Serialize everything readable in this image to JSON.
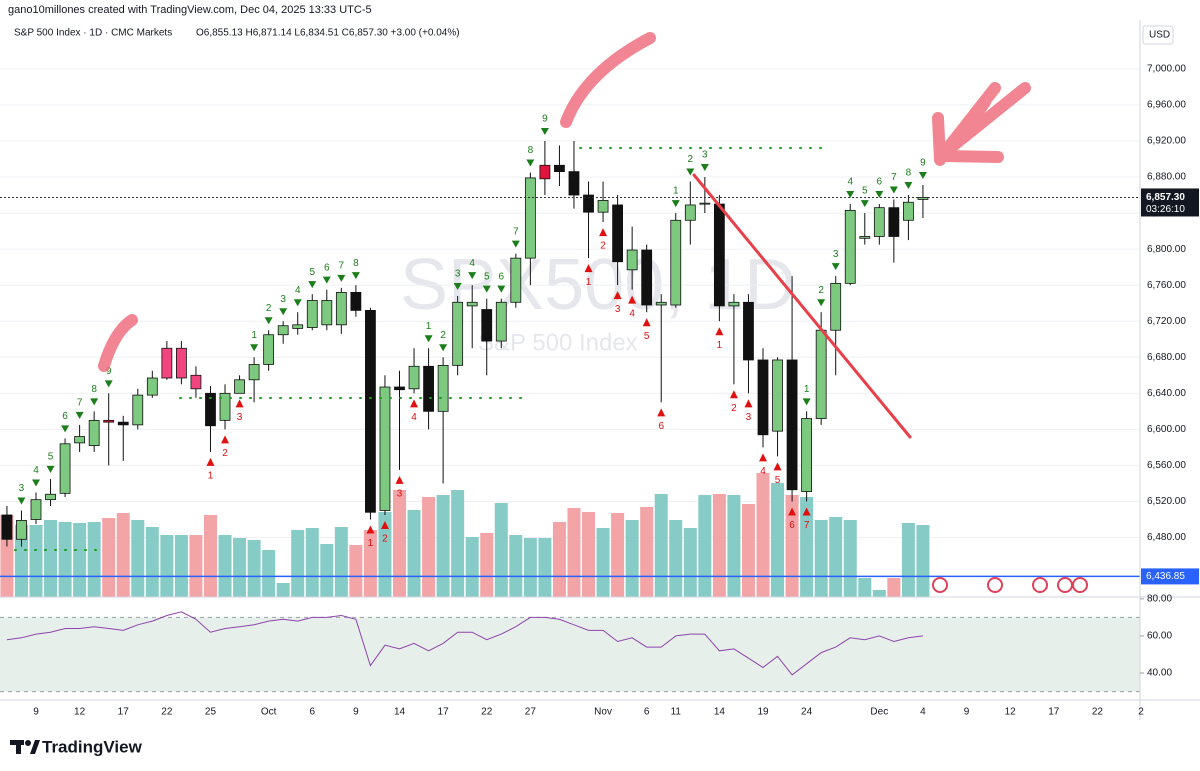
{
  "chart_data": {
    "type": "candlestick",
    "attribution": "gano10millones created with TradingView.com, Dec 04, 2025 13:33 UTC-5",
    "symbol": "S&P 500 Index · 1D · CMC Markets",
    "ohlc_text": "O6,855.13 H6,871.14 L6,834.51 C6,857.30 +3.00 (+0.04%)",
    "currency": "USD",
    "watermark": "SPX500, 1D",
    "watermark_sub": "S&P 500 Index",
    "footer_brand": "TradingView",
    "categories": [
      null,
      null,
      "9",
      null,
      null,
      "12",
      null,
      null,
      "17",
      null,
      null,
      "22",
      null,
      null,
      "25",
      null,
      null,
      null,
      "Oct",
      null,
      null,
      "6",
      null,
      null,
      "9",
      null,
      null,
      "14",
      null,
      null,
      "17",
      null,
      null,
      "22",
      null,
      null,
      "27",
      null,
      null,
      null,
      null,
      "Nov",
      null,
      null,
      "6",
      null,
      "11",
      null,
      null,
      "14",
      null,
      null,
      "19",
      null,
      null,
      "24",
      null,
      null,
      null,
      null,
      "Dec",
      null,
      null,
      "4",
      null,
      null,
      "9",
      null,
      null,
      "12",
      null,
      null,
      "17",
      null,
      null,
      "22",
      null,
      null,
      "2"
    ],
    "open": [
      6505,
      6478,
      6500,
      6522,
      6529,
      6585,
      6582,
      6610,
      6608,
      6605,
      6638,
      6657,
      6657,
      6660,
      6640,
      6610,
      6640,
      6655,
      6672,
      6705,
      6712,
      6713,
      6716,
      6716,
      6752,
      6732,
      6510,
      6647,
      6645,
      6670,
      6620,
      6671,
      6737,
      6733,
      6698,
      6741,
      6790,
      6878,
      6893,
      6886,
      6860,
      6841,
      6849,
      6777,
      6799,
      6738,
      6738,
      6832,
      6850,
      6850,
      6737,
      6741,
      6677,
      6598,
      6677,
      6531,
      6612,
      6710,
      6762,
      6812,
      6814,
      6846,
      6832,
      6855.13,
      null,
      null,
      null,
      null,
      null,
      null,
      null,
      null,
      null,
      null,
      null,
      null,
      null,
      null,
      null
    ],
    "high": [
      6515,
      6510,
      6530,
      6545,
      6590,
      6605,
      6620,
      6640,
      6615,
      6645,
      6665,
      6698,
      6698,
      6670,
      6648,
      6650,
      6660,
      6680,
      6710,
      6720,
      6730,
      6750,
      6755,
      6757,
      6760,
      6735,
      6660,
      6665,
      6690,
      6690,
      6680,
      6748,
      6760,
      6745,
      6745,
      6795,
      6885,
      6920,
      6915,
      6920,
      6875,
      6875,
      6860,
      6825,
      6805,
      6750,
      6840,
      6875,
      6880,
      6860,
      6750,
      6750,
      6690,
      6680,
      6770,
      6620,
      6730,
      6770,
      6850,
      6840,
      6850,
      6855,
      6860,
      6871.14,
      null,
      null,
      null,
      null,
      null,
      null,
      null,
      null,
      null,
      null,
      null,
      null,
      null,
      null,
      null
    ],
    "low": [
      6470,
      6470,
      6495,
      6515,
      6525,
      6575,
      6575,
      6560,
      6565,
      6600,
      6635,
      6655,
      6650,
      6635,
      6575,
      6600,
      6640,
      6630,
      6665,
      6695,
      6705,
      6710,
      6710,
      6706,
      6725,
      6500,
      6505,
      6555,
      6640,
      6600,
      6540,
      6660,
      6690,
      6660,
      6690,
      6735,
      6760,
      6860,
      6870,
      6845,
      6790,
      6830,
      6760,
      6755,
      6730,
      6630,
      6735,
      6805,
      6840,
      6720,
      6650,
      6640,
      6580,
      6570,
      6520,
      6520,
      6605,
      6660,
      6760,
      6805,
      6805,
      6785,
      6810,
      6834.51,
      null,
      null,
      null,
      null,
      null,
      null,
      null,
      null,
      null,
      null,
      null,
      null,
      null,
      null,
      null
    ],
    "close": [
      6478,
      6499,
      6522,
      6528,
      6584,
      6592,
      6610,
      6608,
      6605,
      6638,
      6657,
      6690,
      6690,
      6645,
      6604,
      6640,
      6655,
      6672,
      6705,
      6715,
      6716,
      6743,
      6743,
      6752,
      6732,
      6508,
      6647,
      6644,
      6670,
      6620,
      6671,
      6741,
      6741,
      6698,
      6741,
      6790,
      6879,
      6893,
      6886,
      6860,
      6841,
      6854,
      6786,
      6799,
      6738,
      6741,
      6832,
      6849,
      6851,
      6737,
      6741,
      6677,
      6594,
      6677,
      6533,
      6612,
      6710,
      6762,
      6843,
      6814,
      6846,
      6814,
      6852,
      6857.3,
      null,
      null,
      null,
      null,
      null,
      null,
      null,
      null,
      null,
      null,
      null,
      null,
      null,
      null,
      null
    ],
    "volume": [
      82,
      72,
      72,
      77,
      75,
      74,
      75,
      79,
      84,
      77,
      70,
      62,
      62,
      62,
      82,
      62,
      59,
      57,
      47,
      14,
      67,
      69,
      53,
      70,
      52,
      67,
      85,
      107,
      87,
      100,
      102,
      107,
      60,
      64,
      94,
      62,
      59,
      59,
      75,
      89,
      85,
      69,
      84,
      77,
      90,
      103,
      77,
      69,
      102,
      103,
      102,
      93,
      124,
      114,
      102,
      100,
      77,
      80,
      77,
      19,
      7,
      19,
      74,
      72,
      null,
      null,
      null,
      null,
      null,
      null,
      null,
      null,
      null,
      null,
      null,
      null,
      null,
      null,
      null
    ],
    "rsi": [
      58,
      59,
      61,
      62,
      64,
      64,
      65,
      64,
      63,
      66,
      68,
      71,
      73,
      69,
      62,
      64,
      65,
      66,
      68,
      69,
      68,
      70,
      70,
      71,
      69,
      44,
      55,
      53,
      56,
      52,
      56,
      62,
      62,
      58,
      61,
      65,
      70,
      70,
      69,
      66,
      63,
      63,
      57,
      59,
      54,
      54,
      60,
      61,
      61,
      52,
      53,
      48,
      43,
      49,
      39,
      45,
      51,
      54,
      59,
      58,
      60,
      57,
      59,
      60,
      null,
      null,
      null,
      null,
      null,
      null,
      null,
      null,
      null,
      null,
      null,
      null,
      null,
      null,
      null
    ],
    "up_color": "#7cc97f",
    "down_color": "#111111",
    "volume_up_color": "#86cbc6",
    "volume_down_color": "#f2a4a6",
    "rsi_color": "#8e44ad",
    "highlights": [
      {
        "index": 7,
        "color": "#e0143c"
      },
      {
        "index": 11,
        "color": "#f0457f"
      },
      {
        "index": 12,
        "color": "#f0457f"
      },
      {
        "index": 13,
        "color": "#f0457f"
      },
      {
        "index": 37,
        "color": "#e0143c"
      }
    ],
    "sell_setup": [
      {
        "index": 1,
        "count": 3
      },
      {
        "index": 2,
        "count": 4
      },
      {
        "index": 3,
        "count": 5
      },
      {
        "index": 4,
        "count": 6
      },
      {
        "index": 5,
        "count": 7
      },
      {
        "index": 6,
        "count": 8
      },
      {
        "index": 7,
        "count": 9
      },
      {
        "index": 17,
        "count": 1
      },
      {
        "index": 18,
        "count": 2
      },
      {
        "index": 19,
        "count": 3
      },
      {
        "index": 20,
        "count": 4
      },
      {
        "index": 21,
        "count": 5
      },
      {
        "index": 22,
        "count": 6
      },
      {
        "index": 23,
        "count": 7
      },
      {
        "index": 24,
        "count": 8
      },
      {
        "index": 29,
        "count": 1
      },
      {
        "index": 30,
        "count": 2
      },
      {
        "index": 31,
        "count": 3
      },
      {
        "index": 32,
        "count": 4
      },
      {
        "index": 33,
        "count": 5
      },
      {
        "index": 34,
        "count": 6
      },
      {
        "index": 35,
        "count": 7
      },
      {
        "index": 36,
        "count": 8
      },
      {
        "index": 37,
        "count": 9
      },
      {
        "index": 46,
        "count": 1
      },
      {
        "index": 47,
        "count": 2
      },
      {
        "index": 48,
        "count": 3
      },
      {
        "index": 55,
        "count": 1
      },
      {
        "index": 56,
        "count": 2
      },
      {
        "index": 57,
        "count": 3
      },
      {
        "index": 58,
        "count": 4
      },
      {
        "index": 59,
        "count": 5
      },
      {
        "index": 60,
        "count": 6
      },
      {
        "index": 61,
        "count": 7
      },
      {
        "index": 62,
        "count": 8
      },
      {
        "index": 63,
        "count": 9
      }
    ],
    "buy_setup": [
      {
        "index": 14,
        "count": 1
      },
      {
        "index": 15,
        "count": 2
      },
      {
        "index": 16,
        "count": 3
      },
      {
        "index": 25,
        "count": 1
      },
      {
        "index": 26,
        "count": 2
      },
      {
        "index": 27,
        "count": 3
      },
      {
        "index": 28,
        "count": 4
      },
      {
        "index": 40,
        "count": 1
      },
      {
        "index": 41,
        "count": 2
      },
      {
        "index": 42,
        "count": 3
      },
      {
        "index": 43,
        "count": 4
      },
      {
        "index": 44,
        "count": 5
      },
      {
        "index": 45,
        "count": 6
      },
      {
        "index": 49,
        "count": 1
      },
      {
        "index": 50,
        "count": 2
      },
      {
        "index": 51,
        "count": 3
      },
      {
        "index": 52,
        "count": 4
      },
      {
        "index": 53,
        "count": 5
      },
      {
        "index": 54,
        "count": 6
      },
      {
        "index": 55,
        "count": 7
      }
    ],
    "sell_setup_color": "#1b7e1b",
    "buy_setup_color": "#e01010",
    "ylim": [
      6414,
      7052
    ],
    "yticks": [
      {
        "value": 6480,
        "label": "6,480.00"
      },
      {
        "value": 6520,
        "label": "6,520.00"
      },
      {
        "value": 6560,
        "label": "6,560.00"
      },
      {
        "value": 6600,
        "label": "6,600.00"
      },
      {
        "value": 6640,
        "label": "6,640.00"
      },
      {
        "value": 6680,
        "label": "6,680.00"
      },
      {
        "value": 6720,
        "label": "6,720.00"
      },
      {
        "value": 6760,
        "label": "6,760.00"
      },
      {
        "value": 6800,
        "label": "6,800.00"
      },
      {
        "value": 6840,
        "label": "6,840.00"
      },
      {
        "value": 6880,
        "label": "6,880.00"
      },
      {
        "value": 6920,
        "label": "6,920.00"
      },
      {
        "value": 6960,
        "label": "6,960.00"
      },
      {
        "value": 7000,
        "label": "7,000.00"
      }
    ],
    "volume_lim": [
      0,
      575
    ],
    "rsi_ylim": [
      26,
      81
    ],
    "rsi_yticks": [
      {
        "value": 80,
        "label": "80.00"
      },
      {
        "value": 60,
        "label": "60.00"
      },
      {
        "value": 40,
        "label": "40.00"
      }
    ],
    "rsi_band": [
      30,
      70
    ],
    "last_price": {
      "value": 6857.3,
      "label": "6,857.30"
    },
    "countdown": "03:26:10",
    "level": {
      "value": 6436.85,
      "label": "6,436.85"
    },
    "grid": true
  }
}
